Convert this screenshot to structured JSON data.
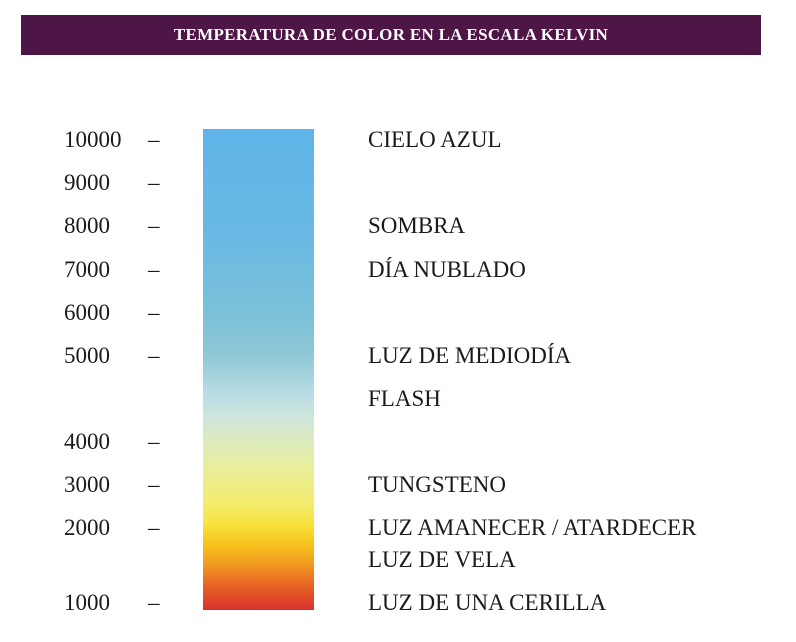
{
  "title": "TEMPERATURA DE COLOR EN LA ESCALA KELVIN",
  "scale": {
    "ticks": [
      {
        "value": "10000",
        "dash": "–"
      },
      {
        "value": "9000",
        "dash": "–"
      },
      {
        "value": "8000",
        "dash": "–"
      },
      {
        "value": "7000",
        "dash": "–"
      },
      {
        "value": "6000",
        "dash": "–"
      },
      {
        "value": "5000",
        "dash": "–"
      },
      {
        "value": "4000",
        "dash": "–"
      },
      {
        "value": "3000",
        "dash": "–"
      },
      {
        "value": "2000",
        "dash": "–"
      },
      {
        "value": "1000",
        "dash": "–"
      }
    ]
  },
  "labels": [
    "CIELO AZUL",
    "SOMBRA",
    "DÍA NUBLADO",
    "LUZ DE MEDIODÍA",
    "FLASH",
    "TUNGSTENO",
    "LUZ AMANECER / ATARDECER",
    "LUZ DE VELA",
    "LUZ DE UNA CERILLA"
  ],
  "colors": {
    "title_background": "#4e1547",
    "title_text": "#ffffff",
    "bar_top": "#5eb4e8",
    "bar_bottom": "#d8302a"
  }
}
